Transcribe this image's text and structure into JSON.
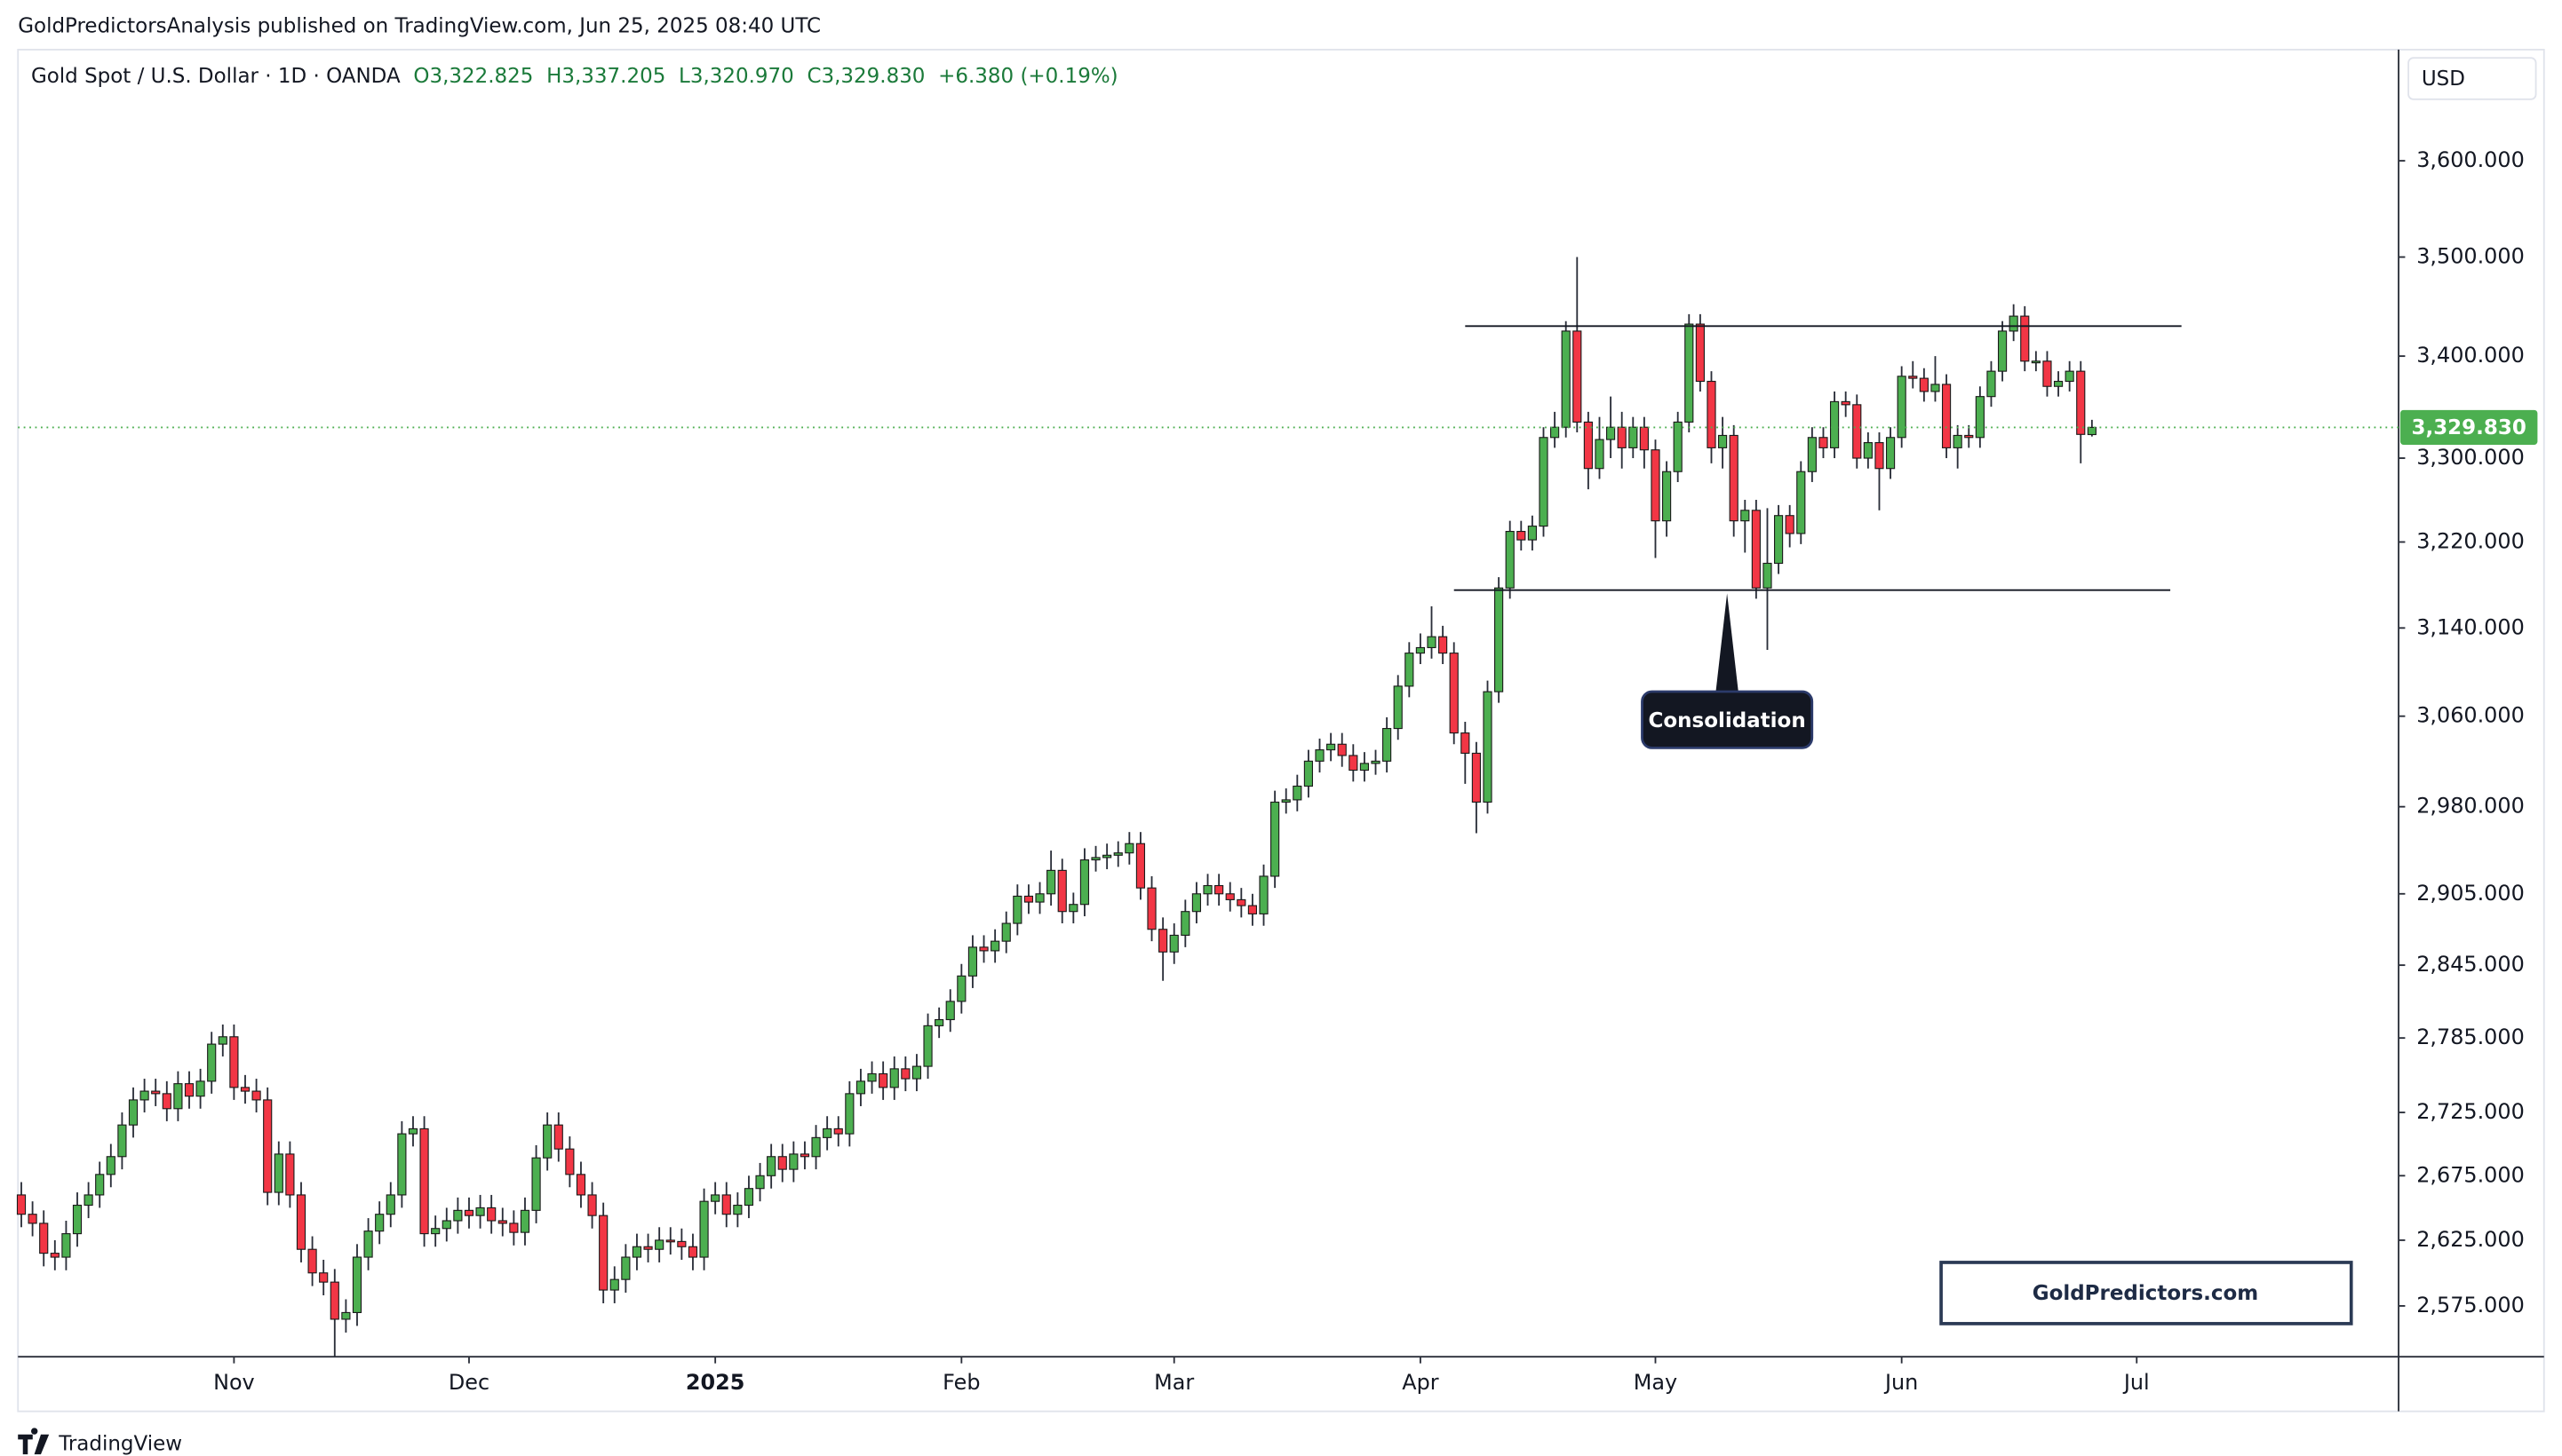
{
  "header": "GoldPredictorsAnalysis published on TradingView.com, Jun 25, 2025 08:40 UTC",
  "footer": "TradingView",
  "chart_data": {
    "type": "candlestick",
    "title": "Gold Spot / U.S. Dollar · 1D · OANDA",
    "last_bar_labels": [
      "O3,322.825",
      "H3,337.205",
      "L3,320.970",
      "C3,329.830",
      "+6.380 (+0.19%)"
    ],
    "currency": "USD",
    "last_price_label": "3,329.830",
    "watermark": "GoldPredictors.com",
    "log_scale": true,
    "grid": false,
    "up_color": "#4caf50",
    "down_color": "#f23645",
    "wick_color": "#2a2e39",
    "last_price_color": "#4caf50",
    "xlim": [
      -0.3,
      212.4
    ],
    "ylim": [
      2537,
      3719
    ],
    "xticks": [
      {
        "value": 19,
        "label": "Nov"
      },
      {
        "value": 40,
        "label": "Dec"
      },
      {
        "value": 62,
        "label": "2025"
      },
      {
        "value": 84,
        "label": "Feb"
      },
      {
        "value": 103,
        "label": "Mar"
      },
      {
        "value": 125,
        "label": "Apr"
      },
      {
        "value": 146,
        "label": "May"
      },
      {
        "value": 168,
        "label": "Jun"
      },
      {
        "value": 189,
        "label": "Jul"
      }
    ],
    "yticks": [
      {
        "value": 2575,
        "label": "2,575.000"
      },
      {
        "value": 2625,
        "label": "2,625.000"
      },
      {
        "value": 2675,
        "label": "2,675.000"
      },
      {
        "value": 2725,
        "label": "2,725.000"
      },
      {
        "value": 2785,
        "label": "2,785.000"
      },
      {
        "value": 2845,
        "label": "2,845.000"
      },
      {
        "value": 2905,
        "label": "2,905.000"
      },
      {
        "value": 2980,
        "label": "2,980.000"
      },
      {
        "value": 3060,
        "label": "3,060.000"
      },
      {
        "value": 3140,
        "label": "3,140.000"
      },
      {
        "value": 3220,
        "label": "3,220.000"
      },
      {
        "value": 3300,
        "label": "3,300.000"
      },
      {
        "value": 3400,
        "label": "3,400.000"
      },
      {
        "value": 3500,
        "label": "3,500.000"
      },
      {
        "value": 3600,
        "label": "3,600.000"
      }
    ],
    "hlines": [
      {
        "y": 3430,
        "x": [
          129,
          193
        ]
      },
      {
        "y": 3175,
        "x": [
          128,
          192
        ]
      }
    ],
    "annotation": {
      "text": "Consolidation",
      "x": 152.4,
      "y": 3172
    },
    "open": [
      2660,
      2645,
      2638,
      2615,
      2612,
      2630,
      2652,
      2660,
      2676,
      2690,
      2715,
      2735,
      2742,
      2740,
      2728,
      2748,
      2738,
      2750,
      2780,
      2786,
      2745,
      2742,
      2735,
      2662,
      2692,
      2660,
      2618,
      2600,
      2593,
      2565,
      2570,
      2612,
      2632,
      2645,
      2660,
      2708,
      2712,
      2630,
      2634,
      2640,
      2648,
      2644,
      2650,
      2640,
      2638,
      2631,
      2648,
      2689,
      2715,
      2696,
      2676,
      2660,
      2644,
      2587,
      2595,
      2612,
      2620,
      2618,
      2625,
      2624,
      2620,
      2612,
      2655,
      2660,
      2645,
      2652,
      2665,
      2675,
      2690,
      2680,
      2692,
      2690,
      2705,
      2712,
      2708,
      2740,
      2750,
      2756,
      2745,
      2760,
      2752,
      2762,
      2795,
      2800,
      2815,
      2836,
      2860,
      2857,
      2865,
      2880,
      2903,
      2898,
      2905,
      2925,
      2890,
      2896,
      2934,
      2936,
      2938,
      2940,
      2948,
      2910,
      2875,
      2856,
      2870,
      2890,
      2905,
      2912,
      2905,
      2900,
      2895,
      2888,
      2920,
      2984,
      2986,
      2998,
      3020,
      3030,
      3035,
      3025,
      3012,
      3018,
      3020,
      3049,
      3087,
      3117,
      3122,
      3132,
      3117,
      3045,
      3027,
      2984,
      3082,
      3177,
      3230,
      3222,
      3235,
      3320,
      3330,
      3425,
      3335,
      3290,
      3318,
      3330,
      3310,
      3330,
      3308,
      3240,
      3287,
      3335,
      3432,
      3375,
      3310,
      3322,
      3240,
      3250,
      3177,
      3200,
      3245,
      3228,
      3287,
      3320,
      3310,
      3355,
      3352,
      3300,
      3315,
      3290,
      3320,
      3380,
      3378,
      3365,
      3372,
      3310,
      3322,
      3320,
      3360,
      3385,
      3425,
      3440,
      3395,
      3395,
      3370,
      3375,
      3385,
      3322.825
    ],
    "high": [
      2670,
      2655,
      2648,
      2625,
      2640,
      2662,
      2670,
      2686,
      2700,
      2725,
      2745,
      2752,
      2752,
      2750,
      2758,
      2758,
      2760,
      2790,
      2796,
      2796,
      2755,
      2752,
      2745,
      2702,
      2702,
      2670,
      2628,
      2610,
      2603,
      2580,
      2622,
      2642,
      2655,
      2670,
      2718,
      2722,
      2722,
      2644,
      2650,
      2658,
      2658,
      2660,
      2660,
      2650,
      2648,
      2658,
      2699,
      2725,
      2725,
      2706,
      2686,
      2670,
      2654,
      2605,
      2622,
      2630,
      2630,
      2635,
      2635,
      2634,
      2630,
      2665,
      2670,
      2670,
      2662,
      2675,
      2685,
      2700,
      2700,
      2702,
      2702,
      2715,
      2722,
      2722,
      2750,
      2760,
      2766,
      2766,
      2770,
      2770,
      2772,
      2805,
      2810,
      2825,
      2846,
      2870,
      2870,
      2875,
      2890,
      2913,
      2913,
      2915,
      2942,
      2935,
      2906,
      2944,
      2946,
      2948,
      2950,
      2958,
      2958,
      2920,
      2885,
      2880,
      2900,
      2915,
      2922,
      2922,
      2915,
      2910,
      2905,
      2930,
      2994,
      2996,
      3008,
      3030,
      3040,
      3045,
      3045,
      3035,
      3028,
      3030,
      3059,
      3097,
      3127,
      3135,
      3160,
      3142,
      3127,
      3055,
      3037,
      3092,
      3187,
      3240,
      3240,
      3245,
      3330,
      3345,
      3435,
      3500,
      3345,
      3340,
      3360,
      3345,
      3340,
      3340,
      3318,
      3297,
      3345,
      3442,
      3442,
      3385,
      3340,
      3332,
      3260,
      3260,
      3252,
      3255,
      3255,
      3297,
      3330,
      3330,
      3365,
      3365,
      3362,
      3325,
      3325,
      3330,
      3390,
      3395,
      3388,
      3400,
      3382,
      3332,
      3332,
      3370,
      3395,
      3435,
      3452,
      3450,
      3405,
      3405,
      3385,
      3395,
      3395,
      3337.205
    ],
    "low": [
      2635,
      2628,
      2605,
      2602,
      2602,
      2620,
      2642,
      2650,
      2666,
      2680,
      2705,
      2725,
      2730,
      2718,
      2718,
      2728,
      2728,
      2740,
      2770,
      2735,
      2732,
      2725,
      2652,
      2652,
      2650,
      2608,
      2590,
      2583,
      2537,
      2555,
      2560,
      2602,
      2622,
      2635,
      2650,
      2698,
      2620,
      2620,
      2624,
      2630,
      2634,
      2634,
      2630,
      2628,
      2621,
      2621,
      2638,
      2679,
      2686,
      2666,
      2650,
      2634,
      2577,
      2577,
      2585,
      2602,
      2608,
      2608,
      2614,
      2610,
      2602,
      2602,
      2645,
      2635,
      2635,
      2642,
      2655,
      2665,
      2670,
      2670,
      2680,
      2680,
      2695,
      2698,
      2698,
      2730,
      2740,
      2735,
      2735,
      2742,
      2742,
      2752,
      2785,
      2790,
      2805,
      2826,
      2847,
      2847,
      2855,
      2870,
      2888,
      2888,
      2895,
      2880,
      2880,
      2886,
      2924,
      2926,
      2928,
      2930,
      2900,
      2865,
      2832,
      2846,
      2860,
      2880,
      2895,
      2895,
      2890,
      2885,
      2878,
      2878,
      2910,
      2974,
      2976,
      2988,
      3010,
      3020,
      3015,
      3002,
      3002,
      3008,
      3010,
      3039,
      3077,
      3107,
      3112,
      3107,
      3035,
      3000,
      2957,
      2974,
      3072,
      3167,
      3212,
      3212,
      3225,
      3310,
      3320,
      3325,
      3270,
      3280,
      3300,
      3290,
      3300,
      3290,
      3205,
      3225,
      3277,
      3325,
      3365,
      3295,
      3290,
      3225,
      3210,
      3167,
      3120,
      3190,
      3215,
      3218,
      3277,
      3300,
      3300,
      3340,
      3290,
      3290,
      3250,
      3280,
      3310,
      3368,
      3355,
      3355,
      3300,
      3290,
      3310,
      3310,
      3350,
      3375,
      3415,
      3385,
      3385,
      3360,
      3360,
      3365,
      3295,
      3320.97
    ],
    "close": [
      2645,
      2638,
      2615,
      2612,
      2630,
      2652,
      2660,
      2676,
      2690,
      2715,
      2735,
      2742,
      2740,
      2728,
      2748,
      2738,
      2750,
      2780,
      2786,
      2745,
      2742,
      2735,
      2662,
      2692,
      2660,
      2618,
      2600,
      2593,
      2565,
      2570,
      2612,
      2632,
      2645,
      2660,
      2708,
      2712,
      2630,
      2634,
      2640,
      2648,
      2644,
      2650,
      2640,
      2638,
      2631,
      2648,
      2689,
      2715,
      2696,
      2676,
      2660,
      2644,
      2587,
      2595,
      2612,
      2620,
      2618,
      2625,
      2624,
      2620,
      2612,
      2655,
      2660,
      2645,
      2652,
      2665,
      2675,
      2690,
      2680,
      2692,
      2690,
      2705,
      2712,
      2708,
      2740,
      2750,
      2756,
      2745,
      2760,
      2752,
      2762,
      2795,
      2800,
      2815,
      2836,
      2860,
      2857,
      2865,
      2880,
      2903,
      2898,
      2905,
      2925,
      2890,
      2896,
      2934,
      2936,
      2938,
      2940,
      2948,
      2910,
      2875,
      2856,
      2870,
      2890,
      2905,
      2912,
      2905,
      2900,
      2895,
      2888,
      2920,
      2984,
      2986,
      2998,
      3020,
      3030,
      3035,
      3025,
      3012,
      3018,
      3020,
      3049,
      3087,
      3117,
      3122,
      3132,
      3117,
      3045,
      3027,
      2984,
      3082,
      3177,
      3230,
      3222,
      3235,
      3320,
      3330,
      3425,
      3335,
      3290,
      3318,
      3330,
      3310,
      3330,
      3308,
      3240,
      3287,
      3335,
      3432,
      3375,
      3310,
      3322,
      3240,
      3250,
      3177,
      3200,
      3245,
      3228,
      3287,
      3320,
      3310,
      3355,
      3352,
      3300,
      3315,
      3290,
      3320,
      3380,
      3378,
      3365,
      3372,
      3310,
      3322,
      3320,
      3360,
      3385,
      3425,
      3440,
      3395,
      3395,
      3370,
      3375,
      3385,
      3323,
      3329.83
    ]
  }
}
